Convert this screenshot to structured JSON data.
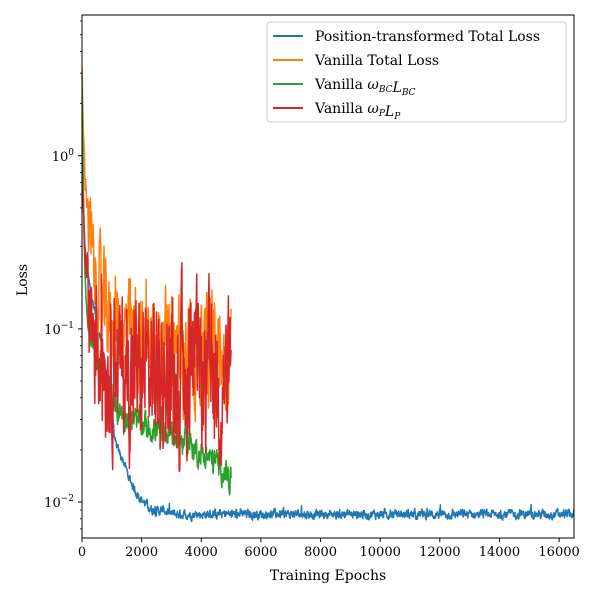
{
  "chart_data": {
    "type": "line",
    "title": "",
    "xlabel": "Training Epochs",
    "ylabel": "Loss",
    "xlim": [
      0,
      16500
    ],
    "ylim": [
      0.0062,
      6.5
    ],
    "yscale": "log",
    "grid": false,
    "legend_position": "top-right",
    "x_ticks": [
      0,
      2000,
      4000,
      6000,
      8000,
      10000,
      12000,
      14000,
      16000
    ],
    "x_tick_labels": [
      "0",
      "2000",
      "4000",
      "6000",
      "8000",
      "10000",
      "12000",
      "14000",
      "16000"
    ],
    "y_major_ticks": [
      0.01,
      0.1,
      1
    ],
    "y_tick_labels": [
      {
        "base": "10",
        "exp": "−2"
      },
      {
        "base": "10",
        "exp": "−1"
      },
      {
        "base": "10",
        "exp": "0"
      }
    ],
    "series": [
      {
        "name": "Position-transformed Total Loss",
        "color": "#1f77b4",
        "x": [
          0,
          50,
          100,
          200,
          300,
          400,
          500,
          600,
          700,
          800,
          900,
          1000,
          1100,
          1200,
          1400,
          1600,
          1800,
          2000,
          2200,
          2400,
          2600,
          2800,
          2900,
          3000,
          4000,
          6000,
          8000,
          10000,
          12000,
          14000,
          16500
        ],
        "y": [
          1.5,
          0.5,
          0.3,
          0.2,
          0.16,
          0.13,
          0.11,
          0.09,
          0.075,
          0.06,
          0.05,
          0.038,
          0.022,
          0.02,
          0.017,
          0.0135,
          0.0115,
          0.0103,
          0.0095,
          0.0089,
          0.0089,
          0.0089,
          0.0086,
          0.0085,
          0.0085,
          0.0085,
          0.0085,
          0.0085,
          0.0085,
          0.0085,
          0.0085
        ],
        "noise": 0.02
      },
      {
        "name": "Vanilla Total Loss",
        "color": "#ff7f0e",
        "x": [
          0,
          50,
          100,
          200,
          300,
          400,
          500,
          600,
          700,
          800,
          900,
          1000,
          1100,
          1200,
          1400,
          1600,
          1800,
          2000,
          2500,
          3000,
          3500,
          4000,
          4500,
          5000
        ],
        "y": [
          3.5,
          1.2,
          0.8,
          0.5,
          0.28,
          0.2,
          0.17,
          0.15,
          0.13,
          0.12,
          0.115,
          0.11,
          0.13,
          0.1,
          0.095,
          0.09,
          0.09,
          0.085,
          0.08,
          0.075,
          0.075,
          0.075,
          0.075,
          0.075
        ],
        "noise": 0.22
      },
      {
        "name": "Vanilla ωBC LBC",
        "label_parts": [
          {
            "t": "Vanilla ",
            "italic": false
          },
          {
            "t": "ω",
            "italic": true
          },
          {
            "t": "BC",
            "italic": true,
            "sub": true
          },
          {
            "t": "L",
            "italic": true
          },
          {
            "t": "BC",
            "italic": true,
            "sub": true
          }
        ],
        "color": "#2ca02c",
        "x": [
          0,
          50,
          100,
          200,
          300,
          400,
          500,
          600,
          700,
          800,
          900,
          1000,
          1200,
          1400,
          1600,
          1800,
          2000,
          2500,
          3000,
          3500,
          4000,
          4500,
          4800,
          5000
        ],
        "y": [
          2.5,
          0.6,
          0.2,
          0.1,
          0.085,
          0.075,
          0.068,
          0.06,
          0.052,
          0.045,
          0.04,
          0.035,
          0.034,
          0.032,
          0.031,
          0.029,
          0.028,
          0.026,
          0.024,
          0.022,
          0.019,
          0.017,
          0.015,
          0.013
        ],
        "noise": 0.06
      },
      {
        "name": "Vanilla ωP LP",
        "label_parts": [
          {
            "t": "Vanilla ",
            "italic": false
          },
          {
            "t": "ω",
            "italic": true
          },
          {
            "t": "P",
            "italic": true,
            "sub": true
          },
          {
            "t": "L",
            "italic": true
          },
          {
            "t": "P",
            "italic": true,
            "sub": true
          }
        ],
        "color": "#d62728",
        "x": [
          0,
          50,
          100,
          200,
          300,
          400,
          500,
          600,
          700,
          800,
          900,
          1000,
          1100,
          1200,
          1400,
          1600,
          1800,
          2000,
          2500,
          3000,
          3500,
          4000,
          4500,
          5000
        ],
        "y": [
          0.8,
          0.5,
          0.3,
          0.22,
          0.12,
          0.1,
          0.09,
          0.08,
          0.075,
          0.07,
          0.065,
          0.06,
          0.1,
          0.06,
          0.057,
          0.056,
          0.056,
          0.055,
          0.055,
          0.05,
          0.05,
          0.05,
          0.05,
          0.05
        ],
        "noise": 0.32
      }
    ]
  }
}
